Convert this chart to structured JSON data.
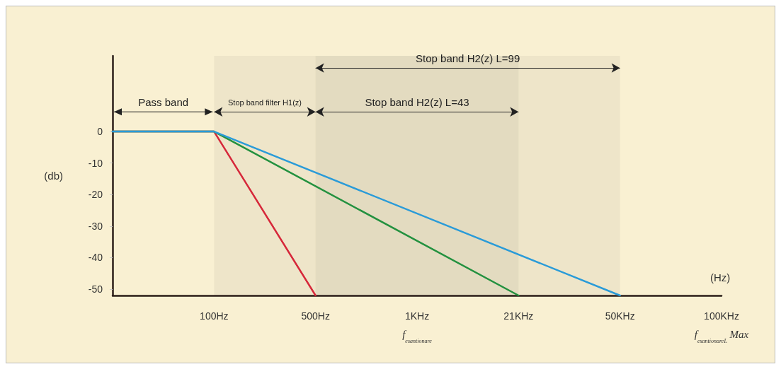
{
  "chart_data": {
    "type": "line",
    "xlabel": "(Hz)",
    "ylabel": "(db)",
    "categories": [
      null,
      "100Hz",
      "500Hz",
      "1KHz\nf$_{esantionare}$",
      "21KHz",
      "50KHz",
      "100KHz\nf$_{esantionareL}$ Max"
    ],
    "series": [
      {
        "color": "#d6283a",
        "values": [
          0,
          0,
          -52,
          null,
          null,
          null,
          null
        ]
      },
      {
        "color": "#23913f",
        "values": [
          0,
          0,
          null,
          null,
          -52,
          null,
          null
        ]
      },
      {
        "color": "#2a9bd8",
        "values": [
          0,
          0,
          null,
          null,
          null,
          -52,
          null
        ]
      }
    ],
    "ylim": [
      -52,
      24
    ],
    "yticks": [
      -50,
      -40,
      -30,
      -20,
      -10,
      0
    ],
    "annotations": [
      "Pass band"
    ],
    "bands": [
      {
        "axis": "x",
        "from": "100Hz",
        "to": "500Hz",
        "label": "Stop band filter H1(z)"
      },
      {
        "axis": "x",
        "from": "500Hz",
        "to": "21KHz",
        "label": "Stop band H2(z) L=43"
      },
      {
        "axis": "x",
        "from": "500Hz",
        "to": "50KHz",
        "label": "Stop band H2(z) L=99"
      }
    ],
    "grid": false,
    "marker": "none",
    "line_style": "solid"
  }
}
